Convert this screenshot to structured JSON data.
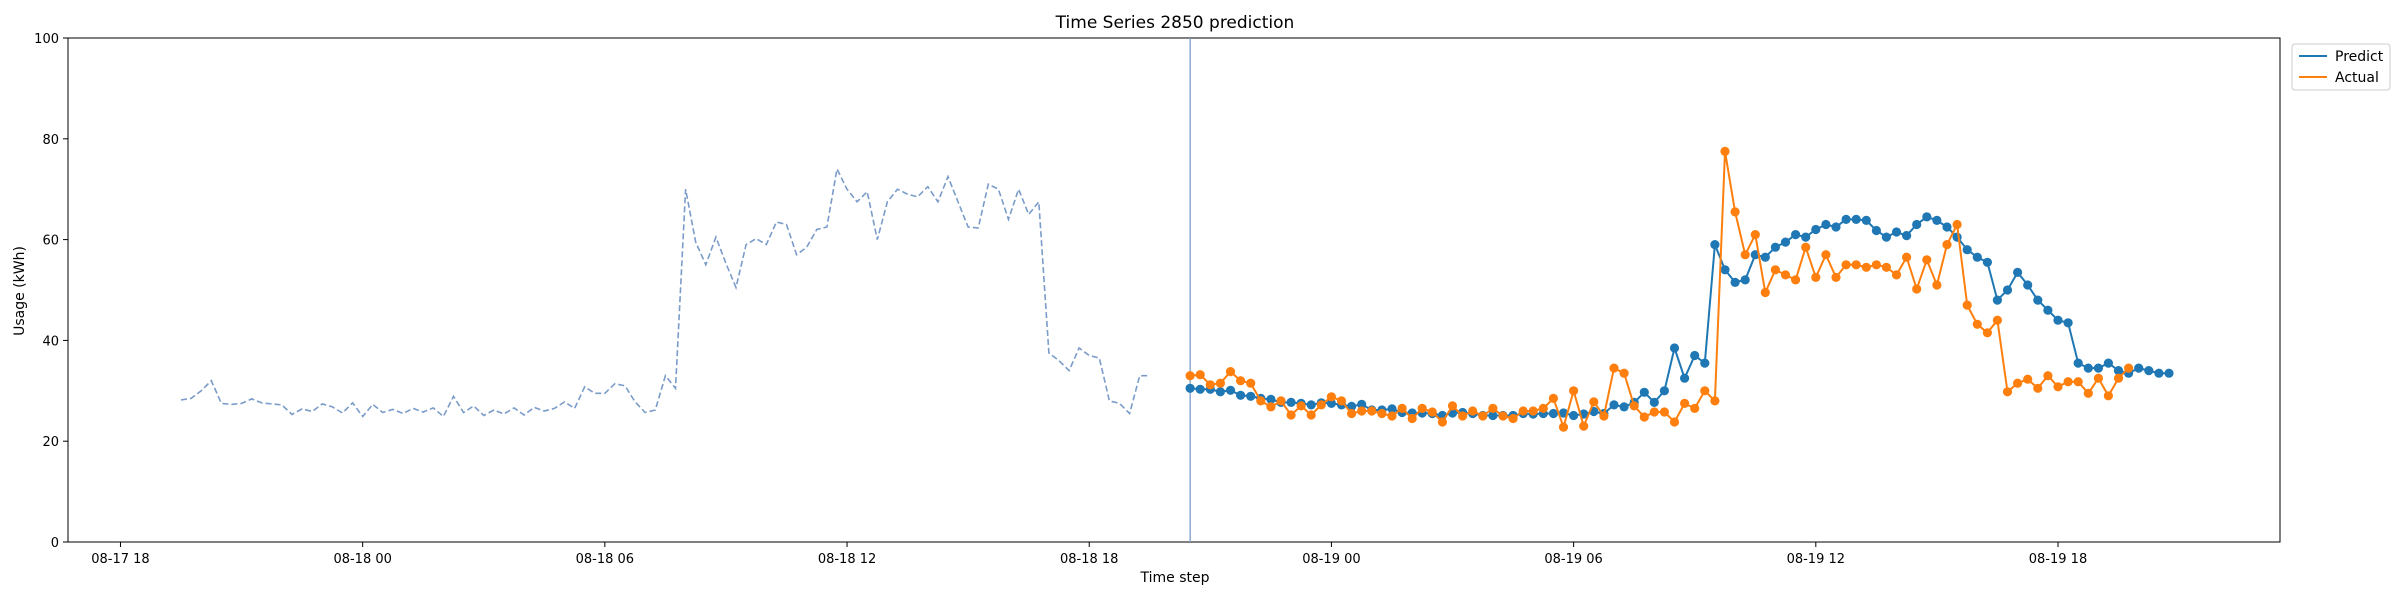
{
  "chart_data": {
    "type": "line",
    "title": "Time Series 2850 prediction",
    "xlabel": "Time step",
    "ylabel": "Usage (kWh)",
    "ylim": [
      0,
      100
    ],
    "xlim": [
      "2023-08-17 16:42",
      "2023-08-19 23:30"
    ],
    "grid": false,
    "legend_position": "top-right, outside plot",
    "yticks": [
      0,
      20,
      40,
      60,
      80,
      100
    ],
    "xticks": [
      {
        "t": "2023-08-17 18:00",
        "label": "08-17 18"
      },
      {
        "t": "2023-08-18 00:00",
        "label": "08-18 00"
      },
      {
        "t": "2023-08-18 06:00",
        "label": "08-18 06"
      },
      {
        "t": "2023-08-18 12:00",
        "label": "08-18 12"
      },
      {
        "t": "2023-08-18 18:00",
        "label": "08-18 18"
      },
      {
        "t": "2023-08-19 00:00",
        "label": "08-19 00"
      },
      {
        "t": "2023-08-19 06:00",
        "label": "08-19 06"
      },
      {
        "t": "2023-08-19 12:00",
        "label": "08-19 12"
      },
      {
        "t": "2023-08-19 18:00",
        "label": "08-19 18"
      }
    ],
    "forecast_start": "2023-08-18 20:30",
    "history": {
      "start": "2023-08-17 19:30",
      "interval_minutes": 15,
      "color": "#7b9cc9",
      "style": "dashed",
      "values": [
        28.2,
        28.5,
        30.0,
        32.0,
        27.5,
        27.3,
        27.5,
        28.4,
        27.6,
        27.4,
        27.2,
        25.3,
        26.4,
        25.9,
        27.4,
        26.8,
        25.6,
        27.6,
        24.9,
        27.3,
        25.7,
        26.3,
        25.5,
        26.5,
        25.8,
        26.6,
        24.9,
        28.9,
        25.7,
        27.0,
        25.1,
        26.2,
        25.4,
        26.6,
        25.2,
        26.7,
        26.0,
        26.5,
        27.8,
        26.5,
        30.8,
        29.5,
        29.5,
        31.4,
        31.0,
        27.8,
        25.7,
        26.2,
        33.0,
        30.5,
        70.0,
        59.5,
        55.0,
        60.5,
        55.3,
        50.5,
        59.0,
        60.2,
        59.0,
        63.5,
        63.0,
        57.0,
        58.5,
        62.0,
        62.5,
        74.0,
        70.0,
        67.5,
        69.5,
        60.0,
        67.5,
        70.0,
        69.0,
        68.5,
        70.5,
        67.5,
        72.5,
        67.5,
        62.5,
        62.3,
        71.0,
        70.0,
        64.0,
        70.0,
        65.0,
        67.5,
        37.5,
        36.0,
        34.0,
        38.5,
        37.0,
        36.5,
        28.0,
        27.5,
        25.5,
        33.0,
        33.0
      ]
    },
    "series": [
      {
        "name": "Predict",
        "color": "#1f77b4",
        "start": "2023-08-18 20:30",
        "interval_minutes": 15,
        "values": [
          30.5,
          30.3,
          30.3,
          29.8,
          30.1,
          29.1,
          28.9,
          28.5,
          28.3,
          27.7,
          27.7,
          27.5,
          27.2,
          27.6,
          27.5,
          27.2,
          26.9,
          27.3,
          26.2,
          26.2,
          26.4,
          25.7,
          25.6,
          25.6,
          25.5,
          25.1,
          25.6,
          25.7,
          25.5,
          25.1,
          25.1,
          25.1,
          25.1,
          25.5,
          25.4,
          25.5,
          25.5,
          25.6,
          25.1,
          25.4,
          25.9,
          25.5,
          27.2,
          26.8,
          27.7,
          29.7,
          27.7,
          30.0,
          38.5,
          32.5,
          37.0,
          35.5,
          59.0,
          54.0,
          51.5,
          52.0,
          57.0,
          56.5,
          58.5,
          59.5,
          61.0,
          60.5,
          62.0,
          63.0,
          62.5,
          64.0,
          64.0,
          63.8,
          61.8,
          60.5,
          61.5,
          60.8,
          63.0,
          64.5,
          63.8,
          62.5,
          60.5,
          58.0,
          56.5,
          55.5,
          48.0,
          50.0,
          53.5,
          51.0,
          48.0,
          46.0,
          44.0,
          43.5,
          35.5,
          34.5,
          34.5,
          35.5,
          34.0,
          33.5,
          34.5,
          34.0,
          33.5,
          33.5
        ]
      },
      {
        "name": "Actual",
        "color": "#ff7f0e",
        "start": "2023-08-18 20:30",
        "interval_minutes": 15,
        "values": [
          33.0,
          33.2,
          31.2,
          31.5,
          33.8,
          32.0,
          31.5,
          28.0,
          26.8,
          28.0,
          25.2,
          27.0,
          25.2,
          27.2,
          28.8,
          28.0,
          25.5,
          26.0,
          26.0,
          25.5,
          25.0,
          26.5,
          24.5,
          26.5,
          25.8,
          23.8,
          27.0,
          25.0,
          26.0,
          25.0,
          26.5,
          25.0,
          24.5,
          26.0,
          26.0,
          26.5,
          28.5,
          22.8,
          30.0,
          23.0,
          27.8,
          25.0,
          34.5,
          33.5,
          27.0,
          24.8,
          25.8,
          25.8,
          23.8,
          27.5,
          26.5,
          30.0,
          28.0,
          77.5,
          65.5,
          57.0,
          61.0,
          49.5,
          54.0,
          53.0,
          52.0,
          58.5,
          52.5,
          57.0,
          52.5,
          55.0,
          55.0,
          54.5,
          55.0,
          54.5,
          53.0,
          56.5,
          50.2,
          56.0,
          51.0,
          59.0,
          63.0,
          47.0,
          43.2,
          41.5,
          44.0,
          29.8,
          31.5,
          32.3,
          30.5,
          33.0,
          30.8,
          31.8,
          31.8,
          29.5,
          32.5,
          29.0,
          32.5,
          34.5
        ]
      }
    ]
  }
}
